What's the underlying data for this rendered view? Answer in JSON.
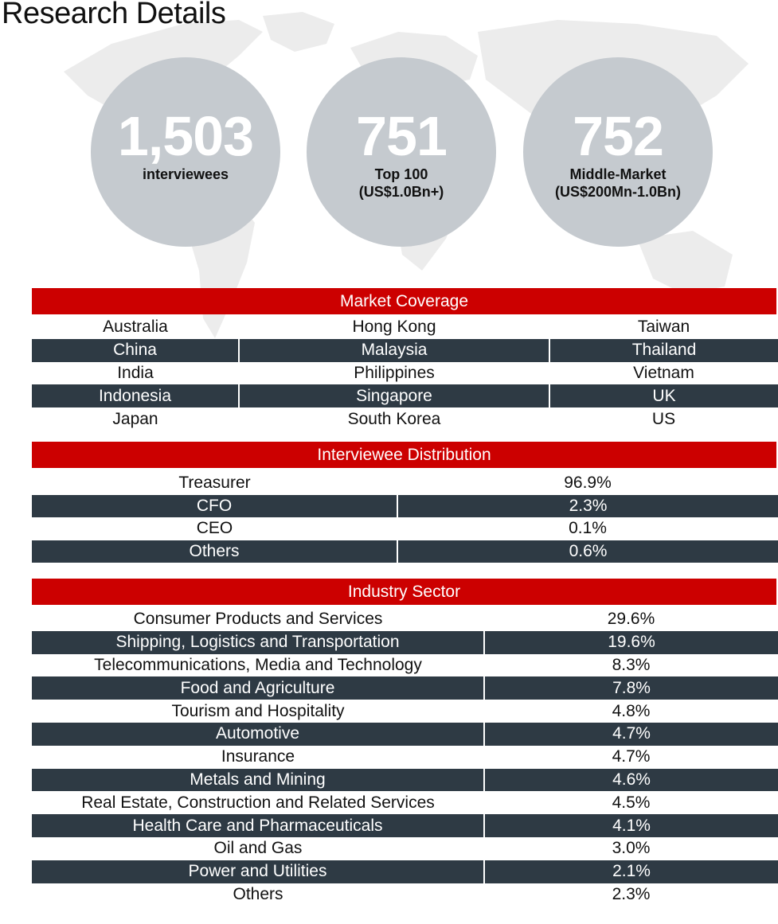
{
  "page_title": "Research Details",
  "stats": [
    {
      "value": "1,503",
      "label": "interviewees",
      "sublabel": ""
    },
    {
      "value": "751",
      "label": "Top 100",
      "sublabel": "(US$1.0Bn+)"
    },
    {
      "value": "752",
      "label": "Middle-Market",
      "sublabel": "(US$200Mn-1.0Bn)"
    }
  ],
  "market_coverage": {
    "title": "Market Coverage",
    "rows": [
      [
        "Australia",
        "Hong Kong",
        "Taiwan"
      ],
      [
        "China",
        "Malaysia",
        "Thailand"
      ],
      [
        "India",
        "Philippines",
        "Vietnam"
      ],
      [
        "Indonesia",
        "Singapore",
        "UK"
      ],
      [
        "Japan",
        "South Korea",
        "US"
      ]
    ]
  },
  "interviewee_distribution": {
    "title": "Interviewee Distribution",
    "rows": [
      [
        "Treasurer",
        "96.9%"
      ],
      [
        "CFO",
        "2.3%"
      ],
      [
        "CEO",
        "0.1%"
      ],
      [
        "Others",
        "0.6%"
      ]
    ]
  },
  "industry_sector": {
    "title": "Industry Sector",
    "rows": [
      [
        "Consumer Products and Services",
        "29.6%"
      ],
      [
        "Shipping, Logistics and Transportation",
        "19.6%"
      ],
      [
        "Telecommunications, Media and Technology",
        "8.3%"
      ],
      [
        "Food and Agriculture",
        "7.8%"
      ],
      [
        "Tourism and Hospitality",
        "4.8%"
      ],
      [
        "Automotive",
        "4.7%"
      ],
      [
        "Insurance",
        "4.7%"
      ],
      [
        "Metals and Mining",
        "4.6%"
      ],
      [
        "Real Estate, Construction and Related Services",
        "4.5%"
      ],
      [
        "Health Care and Pharmaceuticals",
        "4.1%"
      ],
      [
        "Oil and Gas",
        "3.0%"
      ],
      [
        "Power and Utilities",
        "2.1%"
      ],
      [
        "Others",
        "2.3%"
      ]
    ]
  },
  "colors": {
    "header_red": "#cc0000",
    "row_dark": "#2e3a44",
    "circle_grey": "#c5cacf",
    "map_grey": "#ececec"
  }
}
